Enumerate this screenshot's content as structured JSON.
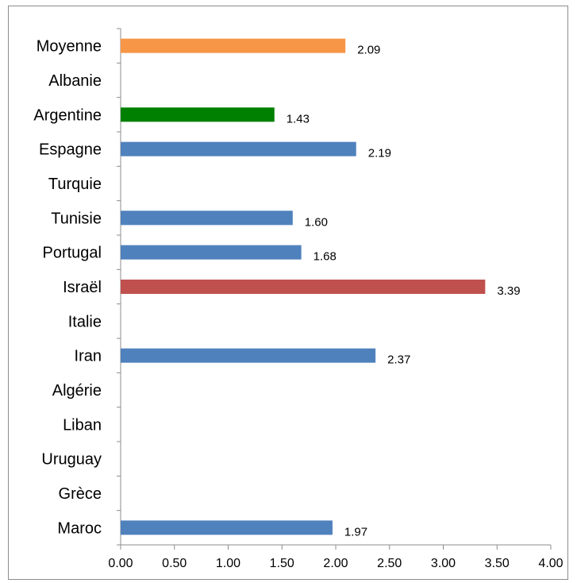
{
  "chart_data": {
    "type": "bar",
    "orientation": "horizontal",
    "title": "",
    "xlabel": "",
    "ylabel": "",
    "xlim": [
      0,
      4
    ],
    "x_ticks": [
      "0.00",
      "0.50",
      "1.00",
      "1.50",
      "2.00",
      "2.50",
      "3.00",
      "3.50",
      "4.00"
    ],
    "grid": false,
    "legend": "none",
    "categories": [
      "Moyenne",
      "Albanie",
      "Argentine",
      "Espagne",
      "Turquie",
      "Tunisie",
      "Portugal",
      "Israël",
      "Italie",
      "Iran",
      "Algérie",
      "Liban",
      "Uruguay",
      "Grèce",
      "Maroc"
    ],
    "values": [
      2.09,
      null,
      1.43,
      2.19,
      null,
      1.6,
      1.68,
      3.39,
      null,
      2.37,
      null,
      null,
      null,
      null,
      1.97
    ],
    "value_labels": [
      "2.09",
      "",
      "1.43",
      "2.19",
      "",
      "1.60",
      "1.68",
      "3.39",
      "",
      "2.37",
      "",
      "",
      "",
      "",
      "1.97"
    ],
    "bar_colors": [
      "#f79646",
      "#4f81bd",
      "#008000",
      "#4f81bd",
      "#4f81bd",
      "#4f81bd",
      "#4f81bd",
      "#c0504d",
      "#4f81bd",
      "#4f81bd",
      "#4f81bd",
      "#4f81bd",
      "#4f81bd",
      "#4f81bd",
      "#4f81bd"
    ]
  }
}
